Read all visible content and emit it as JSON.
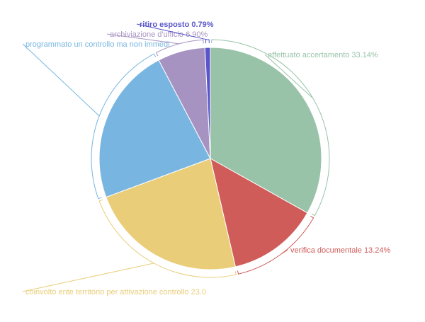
{
  "chart_data": {
    "type": "pie",
    "title": "",
    "slices": [
      {
        "label": "effettuato accertamento 33.14%",
        "value": 33.14,
        "color": "#98c3a8"
      },
      {
        "label": "verifica documentale 13.24%",
        "value": 13.24,
        "color": "#cf5c59"
      },
      {
        "label": "coinvolto ente territorio per attivazione controllo 23.0",
        "value": 22.97,
        "color": "#e9cd78"
      },
      {
        "label": "programmato un controllo ma non immedi",
        "value": 22.96,
        "color": "#78b6e1"
      },
      {
        "label": "archiviazione d'ufficio 6.90%",
        "value": 6.9,
        "color": "#a793c2"
      },
      {
        "label": "ritiro esposto 0.79%",
        "value": 0.79,
        "color": "#5a56c9"
      }
    ]
  }
}
